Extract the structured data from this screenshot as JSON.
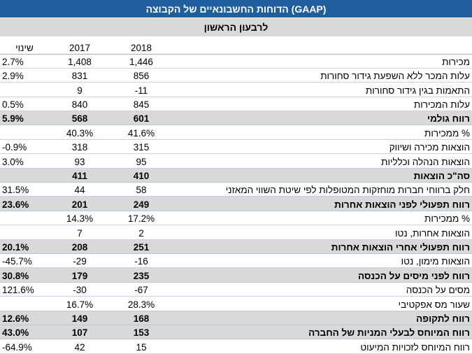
{
  "title": "הדוחות החשבונאיים של הקבוצה (GAAP)",
  "period": "לרבעון הראשון",
  "columns": {
    "y2018": "2018",
    "y2017": "2017",
    "change": "שינוי"
  },
  "rows": [
    {
      "label": "מכירות",
      "y2018": "1,446",
      "y2017": "1,408",
      "change": "2.7%",
      "bold": false
    },
    {
      "label": "עלות המכר ללא השפעת גידור סחורות",
      "y2018": "856",
      "y2017": "831",
      "change": "2.9%",
      "bold": false
    },
    {
      "label": "התאמות בגין גידור סחורות",
      "y2018": "-11",
      "y2017": "9",
      "change": "",
      "bold": false
    },
    {
      "label": "עלות המכירות",
      "y2018": "845",
      "y2017": "840",
      "change": "0.5%",
      "bold": false
    },
    {
      "label": "רווח גולמי",
      "y2018": "601",
      "y2017": "568",
      "change": "5.9%",
      "bold": true
    },
    {
      "label": "% ממכירות",
      "y2018": "41.6%",
      "y2017": "40.3%",
      "change": "",
      "bold": false
    },
    {
      "label": "הוצאות מכירה ושיווק",
      "y2018": "315",
      "y2017": "318",
      "change": "-0.9%",
      "bold": false
    },
    {
      "label": "הוצאות הנהלה וכלליות",
      "y2018": "95",
      "y2017": "93",
      "change": "3.0%",
      "bold": false
    },
    {
      "label": "סה\"כ הוצאות",
      "y2018": "410",
      "y2017": "411",
      "change": "",
      "bold": true
    },
    {
      "label": "חלק ברווחי חברות מוחזקות המטופלות לפי שיטת השווי המאזני",
      "y2018": "58",
      "y2017": "44",
      "change": "31.5%",
      "bold": false
    },
    {
      "label": "רווח תפעולי לפני הוצאות אחרות",
      "y2018": "249",
      "y2017": "201",
      "change": "23.6%",
      "bold": true
    },
    {
      "label": "% ממכירות",
      "y2018": "17.2%",
      "y2017": "14.3%",
      "change": "",
      "bold": false
    },
    {
      "label": "הוצאות אחרות, נטו",
      "y2018": "2",
      "y2017": "7",
      "change": "",
      "bold": false
    },
    {
      "label": "רווח תפעולי אחרי הוצאות אחרות",
      "y2018": "251",
      "y2017": "208",
      "change": "20.1%",
      "bold": true
    },
    {
      "label": "הוצאות מימון, נטו",
      "y2018": "-16",
      "y2017": "-29",
      "change": "-45.7%",
      "bold": false
    },
    {
      "label": "רווח לפני מיסים על הכנסה",
      "y2018": "235",
      "y2017": "179",
      "change": "30.8%",
      "bold": true
    },
    {
      "label": "מסים על הכנסה",
      "y2018": "-67",
      "y2017": "-30",
      "change": "121.6%",
      "bold": false
    },
    {
      "label": "שעור מס אפקטיבי",
      "y2018": "28.3%",
      "y2017": "16.7%",
      "change": "",
      "bold": false
    },
    {
      "label": "רווח לתקופה",
      "y2018": "168",
      "y2017": "149",
      "change": "12.6%",
      "bold": true
    },
    {
      "label": "רווח המיוחס לבעלי המניות של החברה",
      "y2018": "153",
      "y2017": "107",
      "change": "43.0%",
      "bold": true
    },
    {
      "label": "רווח המיוחס לזכויות המיעוט",
      "y2018": "15",
      "y2017": "42",
      "change": "-64.9%",
      "bold": false
    }
  ]
}
